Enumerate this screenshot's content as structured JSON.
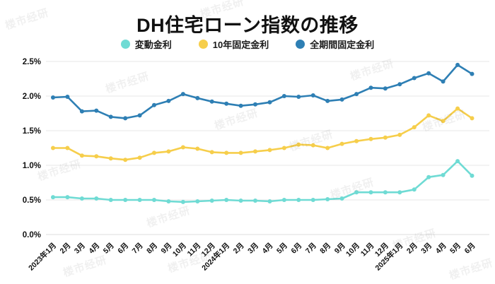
{
  "header": {
    "title": "DH住宅ローン指数の推移"
  },
  "legend": [
    {
      "label": "変動金利",
      "color": "#6FDBD4"
    },
    {
      "label": "10年固定金利",
      "color": "#F6CE4B"
    },
    {
      "label": "全期間固定金利",
      "color": "#2E7FB4"
    }
  ],
  "watermark": {
    "text": "楼市经研"
  },
  "chart_data": {
    "type": "line",
    "title": "DH住宅ローン指数の推移",
    "xlabel": "",
    "ylabel": "",
    "ylim": [
      0,
      2.5
    ],
    "y_ticks": [
      "0.0%",
      "0.5%",
      "1.0%",
      "1.5%",
      "2.0%",
      "2.5%"
    ],
    "grid": true,
    "legend_position": "top",
    "x_labels": [
      "2023年1月",
      "2月",
      "3月",
      "4月",
      "5月",
      "6月",
      "7月",
      "8月",
      "9月",
      "10月",
      "11月",
      "12月",
      "2024年1月",
      "2月",
      "3月",
      "4月",
      "5月",
      "6月",
      "7月",
      "8月",
      "9月",
      "10月",
      "11月",
      "12月",
      "2025年1月",
      "2月",
      "3月",
      "4月",
      "5月",
      "6月"
    ],
    "series": [
      {
        "name": "変動金利",
        "color": "#6FDBD4",
        "values": [
          0.54,
          0.54,
          0.52,
          0.52,
          0.5,
          0.5,
          0.5,
          0.5,
          0.48,
          0.47,
          0.48,
          0.49,
          0.5,
          0.49,
          0.49,
          0.48,
          0.5,
          0.5,
          0.5,
          0.51,
          0.52,
          0.61,
          0.61,
          0.61,
          0.61,
          0.65,
          0.83,
          0.86,
          1.06,
          0.85
        ]
      },
      {
        "name": "10年固定金利",
        "color": "#F6CE4B",
        "values": [
          1.25,
          1.25,
          1.14,
          1.13,
          1.1,
          1.08,
          1.11,
          1.18,
          1.2,
          1.26,
          1.24,
          1.19,
          1.18,
          1.18,
          1.2,
          1.22,
          1.25,
          1.3,
          1.29,
          1.25,
          1.31,
          1.35,
          1.38,
          1.4,
          1.44,
          1.55,
          1.72,
          1.64,
          1.82,
          1.68
        ]
      },
      {
        "name": "全期間固定金利",
        "color": "#2E7FB4",
        "values": [
          1.98,
          1.99,
          1.78,
          1.79,
          1.7,
          1.68,
          1.72,
          1.87,
          1.93,
          2.03,
          1.97,
          1.92,
          1.89,
          1.86,
          1.88,
          1.91,
          2.0,
          1.99,
          2.01,
          1.93,
          1.95,
          2.03,
          2.12,
          2.11,
          2.17,
          2.26,
          2.33,
          2.21,
          2.45,
          2.32
        ]
      }
    ]
  }
}
